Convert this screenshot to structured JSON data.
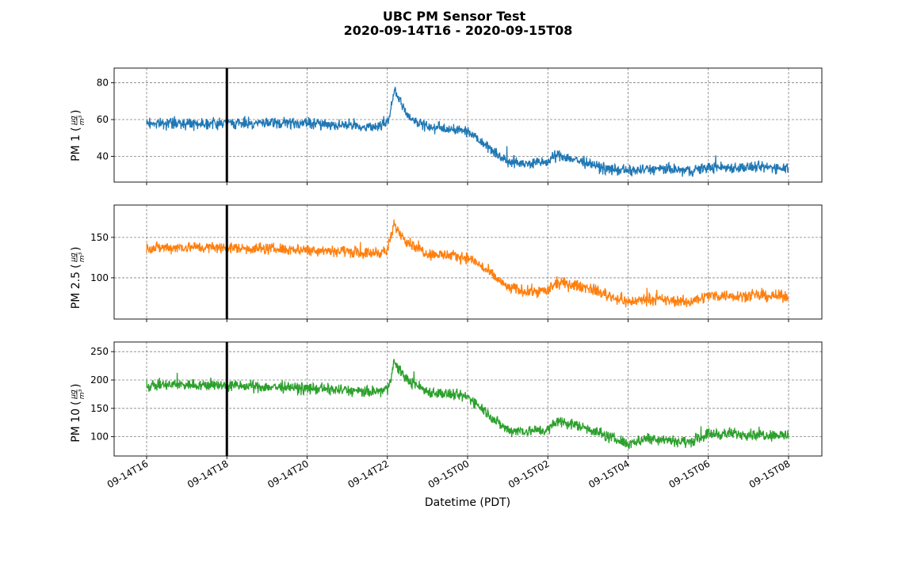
{
  "figure": {
    "title_line1": "UBC PM Sensor Test",
    "title_line2": "2020-09-14T16  -  2020-09-15T08"
  },
  "chart_data": [
    {
      "type": "line",
      "panel": "pm1",
      "ylabel": "PM 1",
      "unit_num": "μg",
      "unit_den": "m³",
      "color": "#1f77b4",
      "ylim": [
        26,
        88
      ],
      "yticks": [
        40,
        60,
        80
      ],
      "x": [
        "09-14T16",
        "09-14T17",
        "09-14T18",
        "09-14T19",
        "09-14T20",
        "09-14T21",
        "09-14T21:30",
        "09-14T22",
        "09-14T22:10",
        "09-14T22:30",
        "09-14T23",
        "09-15T00",
        "09-15T00:15",
        "09-15T00:45",
        "09-15T01",
        "09-15T01:30",
        "09-15T02",
        "09-15T02:15",
        "09-15T03",
        "09-15T03:30",
        "09-15T04",
        "09-15T04:30",
        "09-15T05",
        "09-15T05:30",
        "09-15T06",
        "09-15T07",
        "09-15T08"
      ],
      "values": [
        58,
        58,
        58,
        58,
        58,
        57,
        56,
        57,
        76,
        62,
        56,
        54,
        50,
        41,
        37,
        36,
        37,
        41,
        36,
        33,
        32,
        33,
        33,
        32,
        34,
        34,
        34
      ],
      "noise": 3
    },
    {
      "type": "line",
      "panel": "pm25",
      "ylabel": "PM 2.5",
      "unit_num": "μg",
      "unit_den": "m³",
      "color": "#ff7f0e",
      "ylim": [
        49,
        190
      ],
      "yticks": [
        100,
        150
      ],
      "x": [
        "09-14T16",
        "09-14T17",
        "09-14T18",
        "09-14T19",
        "09-14T20",
        "09-14T21",
        "09-14T21:30",
        "09-14T22",
        "09-14T22:10",
        "09-14T22:30",
        "09-14T23",
        "09-15T00",
        "09-15T00:15",
        "09-15T00:45",
        "09-15T01",
        "09-15T01:30",
        "09-15T02",
        "09-15T02:15",
        "09-15T03",
        "09-15T03:30",
        "09-15T04",
        "09-15T04:30",
        "09-15T05",
        "09-15T05:30",
        "09-15T06",
        "09-15T07",
        "09-15T08"
      ],
      "values": [
        137,
        138,
        137,
        136,
        135,
        133,
        130,
        133,
        165,
        145,
        130,
        125,
        118,
        98,
        88,
        83,
        84,
        94,
        88,
        78,
        70,
        74,
        72,
        70,
        78,
        78,
        77
      ],
      "noise": 7
    },
    {
      "type": "line",
      "panel": "pm10",
      "ylabel": "PM 10",
      "unit_num": "μg",
      "unit_den": "m³",
      "color": "#2ca02c",
      "ylim": [
        66,
        267
      ],
      "yticks": [
        100,
        150,
        200,
        250
      ],
      "x": [
        "09-14T16",
        "09-14T17",
        "09-14T18",
        "09-14T19",
        "09-14T20",
        "09-14T21",
        "09-14T21:30",
        "09-14T22",
        "09-14T22:10",
        "09-14T22:30",
        "09-14T23",
        "09-15T00",
        "09-15T00:15",
        "09-15T00:45",
        "09-15T01",
        "09-15T01:30",
        "09-15T02",
        "09-15T02:15",
        "09-15T03",
        "09-15T03:30",
        "09-15T04",
        "09-15T04:30",
        "09-15T05",
        "09-15T05:30",
        "09-15T06",
        "09-15T07",
        "09-15T08"
      ],
      "values": [
        190,
        192,
        190,
        188,
        185,
        182,
        178,
        182,
        230,
        200,
        180,
        170,
        158,
        125,
        112,
        110,
        112,
        128,
        115,
        100,
        88,
        98,
        95,
        90,
        105,
        105,
        102
      ],
      "noise": 10
    }
  ],
  "x_axis": {
    "xlabel": "Datetime (PDT)",
    "ticks": [
      "09-14T16",
      "09-14T18",
      "09-14T20",
      "09-14T22",
      "09-15T00",
      "09-15T02",
      "09-15T04",
      "09-15T06",
      "09-15T08"
    ],
    "marker_at": "09-14T18"
  }
}
